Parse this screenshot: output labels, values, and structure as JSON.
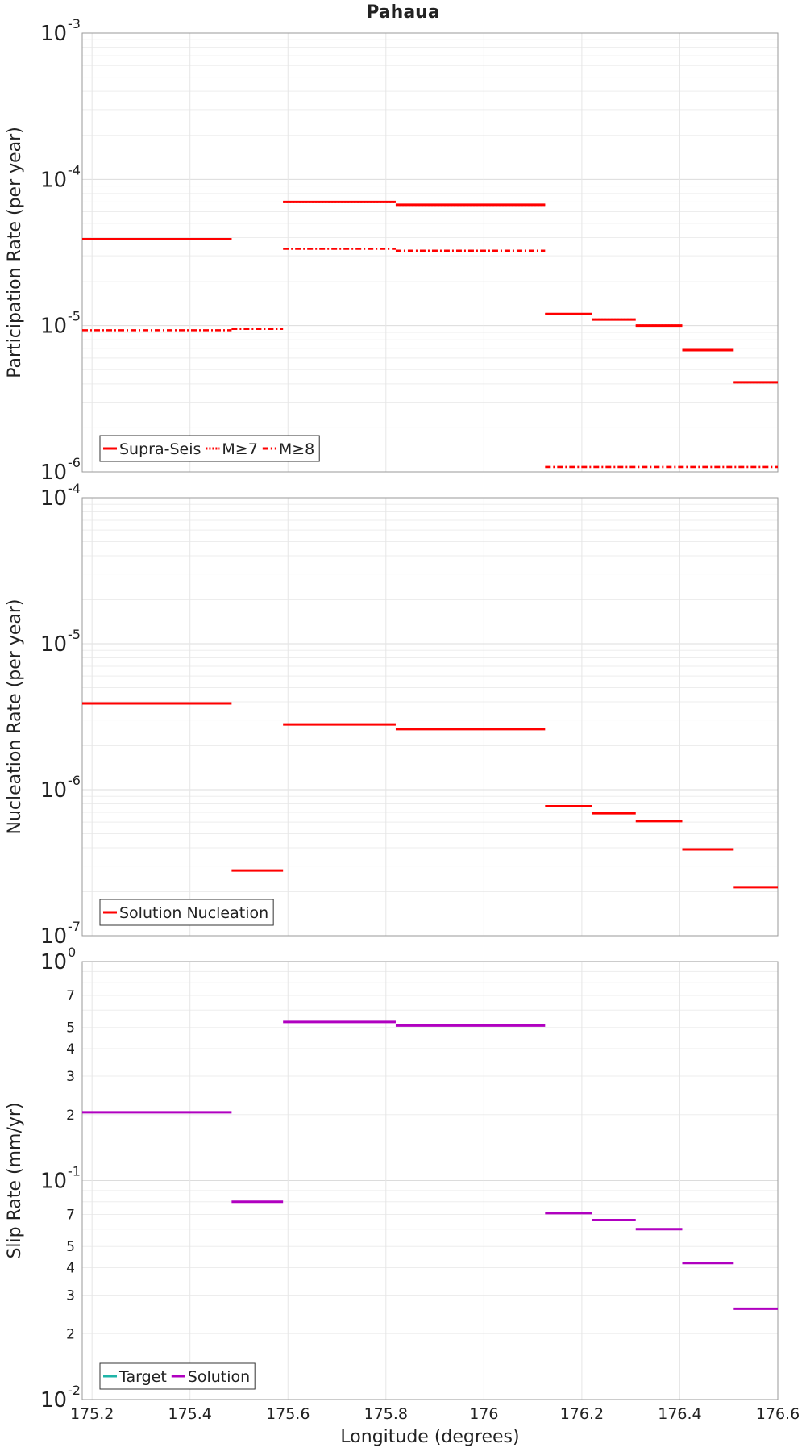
{
  "figure": {
    "title": "Pahaua"
  },
  "chart_data": [
    {
      "type": "line",
      "title": "Pahaua",
      "xlabel": "",
      "ylabel": "Participation Rate (per year)",
      "xlim": [
        175.18,
        176.6
      ],
      "ylim": [
        1e-06,
        0.001
      ],
      "yscale": "log",
      "grid": true,
      "legend_position": "bottom-left",
      "x_ticks": [
        "175.2",
        "175.4",
        "175.6",
        "175.8",
        "176",
        "176.2",
        "176.4",
        "176.6"
      ],
      "y_ticks": [
        {
          "value": 0.001,
          "base": "10",
          "exp": "-3"
        },
        {
          "value": 0.0001,
          "base": "10",
          "exp": "-4"
        },
        {
          "value": 1e-05,
          "base": "10",
          "exp": "-5"
        },
        {
          "value": 1e-06,
          "base": "10",
          "exp": "-6"
        }
      ],
      "series": [
        {
          "name": "Supra-Seis",
          "color": "#ff0000",
          "style": "solid",
          "segments": [
            {
              "x": [
                175.18,
                175.485
              ],
              "y": 3.9e-05
            },
            {
              "x": [
                175.59,
                175.82
              ],
              "y": 7e-05
            },
            {
              "x": [
                175.82,
                176.125
              ],
              "y": 6.7e-05
            },
            {
              "x": [
                176.125,
                176.22
              ],
              "y": 1.2e-05
            },
            {
              "x": [
                176.22,
                176.31
              ],
              "y": 1.1e-05
            },
            {
              "x": [
                176.31,
                176.405
              ],
              "y": 1e-05
            },
            {
              "x": [
                176.405,
                176.51
              ],
              "y": 6.8e-06
            },
            {
              "x": [
                176.51,
                176.6
              ],
              "y": 4.1e-06
            }
          ]
        },
        {
          "name": "M≥7",
          "color": "#ff0000",
          "style": "dotted",
          "segments": [
            {
              "x": [
                175.18,
                175.485
              ],
              "y": 3.9e-05
            },
            {
              "x": [
                175.59,
                175.82
              ],
              "y": 7e-05
            },
            {
              "x": [
                175.82,
                176.125
              ],
              "y": 6.7e-05
            },
            {
              "x": [
                176.125,
                176.22
              ],
              "y": 1.2e-05
            },
            {
              "x": [
                176.22,
                176.31
              ],
              "y": 1.1e-05
            },
            {
              "x": [
                176.31,
                176.405
              ],
              "y": 1e-05
            },
            {
              "x": [
                176.405,
                176.51
              ],
              "y": 6.8e-06
            },
            {
              "x": [
                176.51,
                176.6
              ],
              "y": 4.1e-06
            }
          ]
        },
        {
          "name": "M≥8",
          "color": "#ff0000",
          "style": "dashdot",
          "segments": [
            {
              "x": [
                175.18,
                175.485
              ],
              "y": 9.3e-06
            },
            {
              "x": [
                175.485,
                175.59
              ],
              "y": 9.5e-06
            },
            {
              "x": [
                175.59,
                175.82
              ],
              "y": 3.35e-05
            },
            {
              "x": [
                175.82,
                176.125
              ],
              "y": 3.25e-05
            },
            {
              "x": [
                176.125,
                176.6
              ],
              "y": 1.08e-06
            }
          ]
        }
      ]
    },
    {
      "type": "line",
      "title": "",
      "xlabel": "",
      "ylabel": "Nucleation Rate (per year)",
      "xlim": [
        175.18,
        176.6
      ],
      "ylim": [
        1e-07,
        0.0001
      ],
      "yscale": "log",
      "grid": true,
      "legend_position": "bottom-left",
      "x_ticks": [],
      "y_ticks": [
        {
          "value": 0.0001,
          "base": "10",
          "exp": "-4"
        },
        {
          "value": 1e-05,
          "base": "10",
          "exp": "-5"
        },
        {
          "value": 1e-06,
          "base": "10",
          "exp": "-6"
        },
        {
          "value": 1e-07,
          "base": "10",
          "exp": "-7"
        }
      ],
      "series": [
        {
          "name": "Solution Nucleation",
          "color": "#ff0000",
          "style": "solid",
          "segments": [
            {
              "x": [
                175.18,
                175.485
              ],
              "y": 3.9e-06
            },
            {
              "x": [
                175.485,
                175.59
              ],
              "y": 2.8e-07
            },
            {
              "x": [
                175.59,
                175.82
              ],
              "y": 2.8e-06
            },
            {
              "x": [
                175.82,
                176.125
              ],
              "y": 2.6e-06
            },
            {
              "x": [
                176.125,
                176.22
              ],
              "y": 7.7e-07
            },
            {
              "x": [
                176.22,
                176.31
              ],
              "y": 6.9e-07
            },
            {
              "x": [
                176.31,
                176.405
              ],
              "y": 6.1e-07
            },
            {
              "x": [
                176.405,
                176.51
              ],
              "y": 3.9e-07
            },
            {
              "x": [
                176.51,
                176.6
              ],
              "y": 2.15e-07
            }
          ]
        }
      ]
    },
    {
      "type": "line",
      "title": "",
      "xlabel": "Longitude (degrees)",
      "ylabel": "Slip Rate (mm/yr)",
      "xlim": [
        175.18,
        176.6
      ],
      "ylim": [
        0.01,
        1
      ],
      "yscale": "log",
      "grid": true,
      "legend_position": "bottom-left",
      "x_ticks": [
        "175.2",
        "175.4",
        "175.6",
        "175.8",
        "176",
        "176.2",
        "176.4",
        "176.6"
      ],
      "y_ticks": [
        {
          "value": 1,
          "base": "10",
          "exp": "0"
        },
        {
          "value": 0.7,
          "base": "7",
          "exp": ""
        },
        {
          "value": 0.5,
          "base": "5",
          "exp": ""
        },
        {
          "value": 0.4,
          "base": "4",
          "exp": ""
        },
        {
          "value": 0.3,
          "base": "3",
          "exp": ""
        },
        {
          "value": 0.2,
          "base": "2",
          "exp": ""
        },
        {
          "value": 0.1,
          "base": "10",
          "exp": "-1"
        },
        {
          "value": 0.07,
          "base": "7",
          "exp": ""
        },
        {
          "value": 0.05,
          "base": "5",
          "exp": ""
        },
        {
          "value": 0.04,
          "base": "4",
          "exp": ""
        },
        {
          "value": 0.03,
          "base": "3",
          "exp": ""
        },
        {
          "value": 0.02,
          "base": "2",
          "exp": ""
        },
        {
          "value": 0.01,
          "base": "10",
          "exp": "-2"
        }
      ],
      "series": [
        {
          "name": "Target",
          "color": "#1fb5a8",
          "style": "solid",
          "segments": []
        },
        {
          "name": "Solution",
          "color": "#b000c0",
          "style": "solid",
          "segments": [
            {
              "x": [
                175.18,
                175.485
              ],
              "y": 0.205
            },
            {
              "x": [
                175.485,
                175.59
              ],
              "y": 0.08
            },
            {
              "x": [
                175.59,
                175.82
              ],
              "y": 0.53
            },
            {
              "x": [
                175.82,
                176.125
              ],
              "y": 0.51
            },
            {
              "x": [
                176.125,
                176.22
              ],
              "y": 0.071
            },
            {
              "x": [
                176.22,
                176.31
              ],
              "y": 0.066
            },
            {
              "x": [
                176.31,
                176.405
              ],
              "y": 0.06
            },
            {
              "x": [
                176.405,
                176.51
              ],
              "y": 0.042
            },
            {
              "x": [
                176.51,
                176.6
              ],
              "y": 0.026
            }
          ]
        }
      ]
    }
  ]
}
